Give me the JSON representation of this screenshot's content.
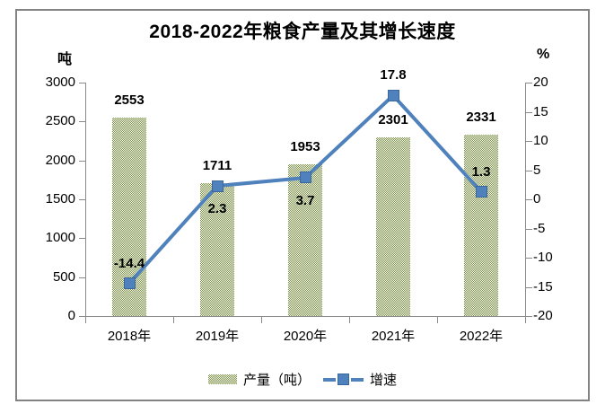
{
  "window": {
    "background": "#ffffff",
    "frame_border_color": "#838383",
    "axis_color": "#8a8a8a"
  },
  "chart_data": {
    "type": "combo",
    "title": "2018-2022年粮食产量及其增长速度",
    "categories": [
      "2018年",
      "2019年",
      "2020年",
      "2021年",
      "2022年"
    ],
    "series": [
      {
        "name": "产量（吨）",
        "type": "bar",
        "axis": "left",
        "values": [
          2553,
          1711,
          1953,
          2301,
          2331
        ],
        "color": "#76923C",
        "pattern": "checkerboard"
      },
      {
        "name": "增速",
        "type": "line",
        "axis": "right",
        "values": [
          -14.4,
          2.3,
          3.7,
          17.8,
          1.3
        ],
        "color": "#4f81bd",
        "marker": "square",
        "label_positions": [
          "above",
          "below",
          "below",
          "above",
          "above"
        ]
      }
    ],
    "left_axis": {
      "unit": "吨",
      "min": 0,
      "max": 3000,
      "step": 500,
      "tick_labels": [
        "3000",
        "2500",
        "2000",
        "1500",
        "1000",
        "500",
        "0"
      ]
    },
    "right_axis": {
      "unit": "%",
      "min": -20,
      "max": 20,
      "step": 5,
      "tick_labels": [
        "20",
        "15",
        "10",
        "5",
        "0",
        "-5",
        "-10",
        "-15",
        "-20"
      ]
    },
    "grid": false,
    "legend_position": "bottom"
  }
}
